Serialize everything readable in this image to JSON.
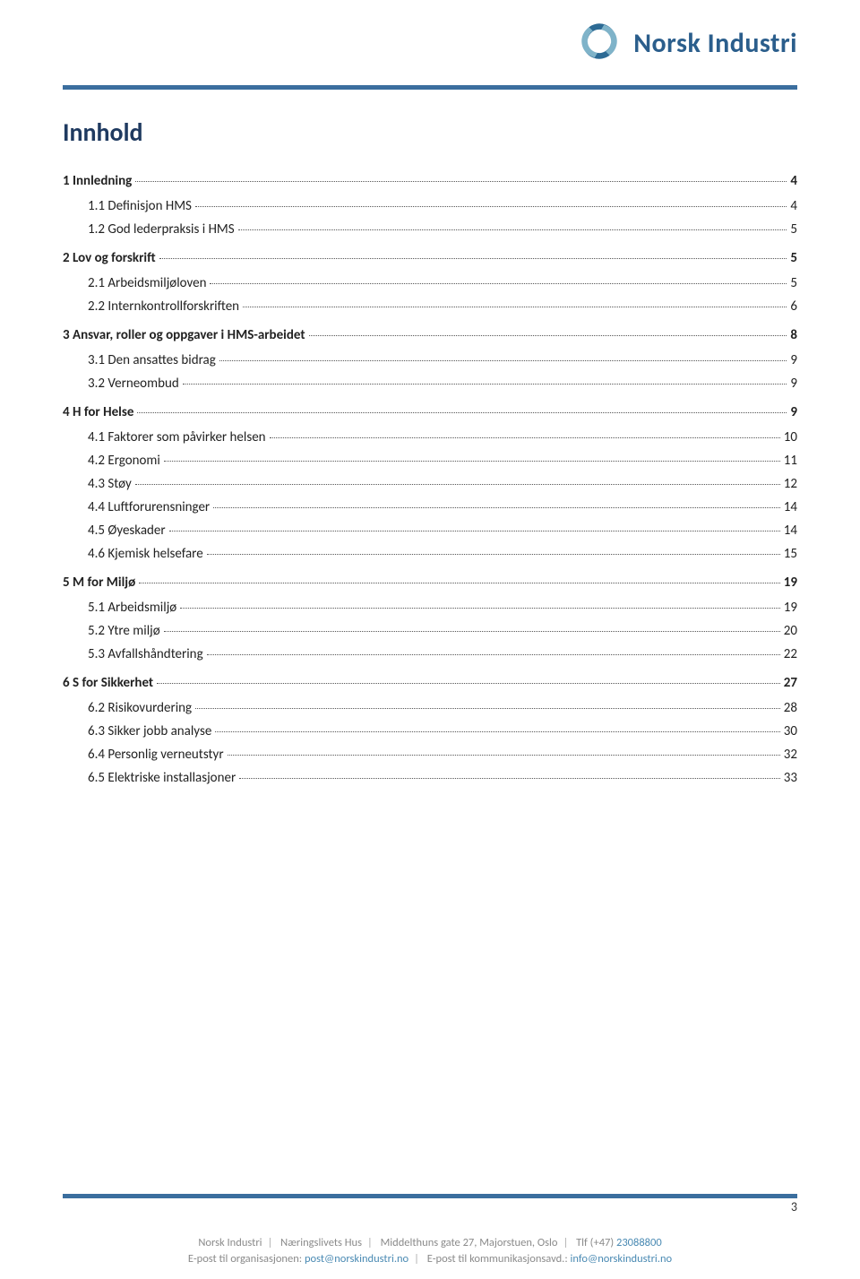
{
  "brand": {
    "name": "Norsk Industri",
    "logo_colors": {
      "ring_outer": "#2c6a94",
      "ring_inner": "#7fb3c9"
    }
  },
  "colors": {
    "rule": "#3b6e9e",
    "title": "#1f3a60",
    "text": "#222222",
    "footer_gray": "#8a8a8a",
    "footer_link": "#4a8ab3"
  },
  "title": "Innhold",
  "toc": [
    {
      "level": 0,
      "label": "1 Innledning",
      "page": "4"
    },
    {
      "level": 1,
      "label": "1.1 Definisjon HMS",
      "page": "4"
    },
    {
      "level": 1,
      "label": "1.2 God lederpraksis i HMS",
      "page": "5"
    },
    {
      "level": 0,
      "label": "2 Lov og forskrift",
      "page": "5"
    },
    {
      "level": 1,
      "label": "2.1 Arbeidsmiljøloven",
      "page": "5"
    },
    {
      "level": 1,
      "label": "2.2 Internkontrollforskriften",
      "page": "6"
    },
    {
      "level": 0,
      "label": "3 Ansvar, roller og oppgaver i HMS-arbeidet",
      "page": "8"
    },
    {
      "level": 1,
      "label": "3.1 Den ansattes bidrag",
      "page": "9"
    },
    {
      "level": 1,
      "label": "3.2 Verneombud",
      "page": "9"
    },
    {
      "level": 0,
      "label": "4 H for Helse",
      "page": "9"
    },
    {
      "level": 1,
      "label": "4.1 Faktorer som påvirker helsen",
      "page": "10"
    },
    {
      "level": 1,
      "label": "4.2 Ergonomi",
      "page": "11"
    },
    {
      "level": 1,
      "label": "4.3 Støy",
      "page": "12"
    },
    {
      "level": 1,
      "label": "4.4 Luftforurensninger",
      "page": "14"
    },
    {
      "level": 1,
      "label": "4.5 Øyeskader",
      "page": "14"
    },
    {
      "level": 1,
      "label": "4.6 Kjemisk helsefare",
      "page": "15"
    },
    {
      "level": 0,
      "label": "5 M for Miljø",
      "page": "19"
    },
    {
      "level": 1,
      "label": "5.1 Arbeidsmiljø",
      "page": "19"
    },
    {
      "level": 1,
      "label": "5.2 Ytre miljø",
      "page": "20"
    },
    {
      "level": 1,
      "label": "5.3 Avfallshåndtering",
      "page": "22"
    },
    {
      "level": 0,
      "label": "6 S for Sikkerhet",
      "page": "27"
    },
    {
      "level": 1,
      "label": "6.2 Risikovurdering",
      "page": "28"
    },
    {
      "level": 1,
      "label": "6.3 Sikker jobb analyse",
      "page": "30"
    },
    {
      "level": 1,
      "label": "6.4 Personlig verneutstyr",
      "page": "32"
    },
    {
      "level": 1,
      "label": "6.5 Elektriske installasjoner",
      "page": "33"
    }
  ],
  "page_number": "3",
  "footer": {
    "line1_parts": [
      "Norsk Industri",
      "Næringslivets Hus",
      "Middelthuns gate 27, Majorstuen, Oslo",
      "Tlf (+47)"
    ],
    "line1_phone": "23088800",
    "line2_a": "E-post til organisasjonen:",
    "line2_a_link": "post@norskindustri.no",
    "line2_b": "E-post til kommunikasjonsavd.:",
    "line2_b_link": "info@norskindustri.no"
  }
}
